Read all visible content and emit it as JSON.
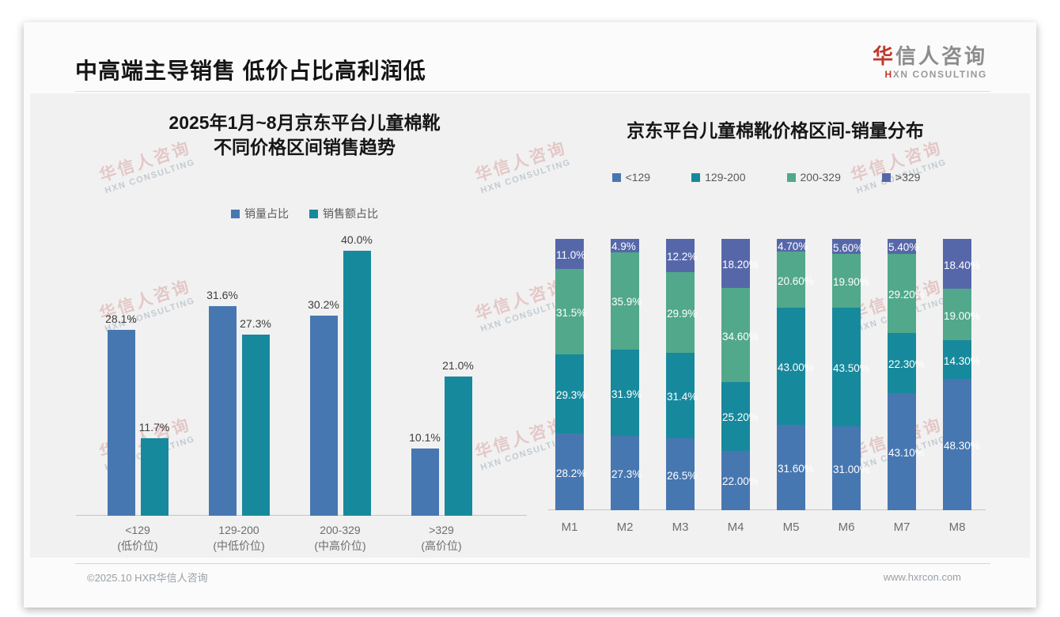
{
  "header": {
    "title": "中高端主导销售 低价占比高利润低",
    "logo_cn_accent": "华",
    "logo_cn_rest": "信人咨询",
    "logo_en_accent": "H",
    "logo_en_rest": "XN CONSULTING"
  },
  "watermark": {
    "line1": "华信人咨询",
    "line2": "HXN CONSULTING"
  },
  "footer": {
    "copyright": "©2025.10 HXR华信人咨询",
    "website": "www.hxrcon.com"
  },
  "colors": {
    "accent_red": "#c0392b",
    "bar_blue": "#4777b0",
    "bar_teal": "#17899c",
    "bar_green": "#52a88b",
    "bar_indigo": "#5667a9",
    "panel_gray": "#f1f1f1"
  },
  "chart_data": [
    {
      "type": "bar",
      "title_lines": [
        "2025年1月~8月京东平台儿童棉靴",
        "不同价格区间销售趋势"
      ],
      "legend_position": "top",
      "grid": false,
      "ylim": [
        0,
        45
      ],
      "categories": [
        {
          "range": "<129",
          "tier": "(低价位)"
        },
        {
          "range": "129-200",
          "tier": "(中低价位)"
        },
        {
          "range": "200-329",
          "tier": "(中高价位)"
        },
        {
          "range": ">329",
          "tier": "(高价位)"
        }
      ],
      "series": [
        {
          "name": "销量占比",
          "color": "#4777b0",
          "values": [
            28.1,
            31.6,
            30.2,
            10.1
          ],
          "labels": [
            "28.1%",
            "31.6%",
            "30.2%",
            "10.1%"
          ]
        },
        {
          "name": "销售额占比",
          "color": "#17899c",
          "values": [
            11.7,
            27.3,
            40.0,
            21.0
          ],
          "labels": [
            "11.7%",
            "27.3%",
            "40.0%",
            "21.0%"
          ]
        }
      ]
    },
    {
      "type": "stacked-bar",
      "title": "京东平台儿童棉靴价格区间-销量分布",
      "legend_position": "top",
      "grid": false,
      "ylim": [
        0,
        100
      ],
      "categories": [
        "M1",
        "M2",
        "M3",
        "M4",
        "M5",
        "M6",
        "M7",
        "M8"
      ],
      "series": [
        {
          "name": "<129",
          "color": "#4777b0",
          "values": [
            28.2,
            27.3,
            26.5,
            22.0,
            31.6,
            31.0,
            43.1,
            48.3
          ],
          "labels": [
            "28.2%",
            "27.3%",
            "26.5%",
            "22.00%",
            "31.60%",
            "31.00%",
            "43.10%",
            "48.30%"
          ]
        },
        {
          "name": "129-200",
          "color": "#17899c",
          "values": [
            29.3,
            31.9,
            31.4,
            25.2,
            43.0,
            43.5,
            22.3,
            14.3
          ],
          "labels": [
            "29.3%",
            "31.9%",
            "31.4%",
            "25.20%",
            "43.00%",
            "43.50%",
            "22.30%",
            "14.30%"
          ]
        },
        {
          "name": "200-329",
          "color": "#52a88b",
          "values": [
            31.5,
            35.9,
            29.9,
            34.6,
            20.6,
            19.9,
            29.2,
            19.0
          ],
          "labels": [
            "31.5%",
            "35.9%",
            "29.9%",
            "34.60%",
            "20.60%",
            "19.90%",
            "29.20%",
            "19.00%"
          ]
        },
        {
          "name": ">329",
          "color": "#5667a9",
          "values": [
            11.0,
            4.9,
            12.2,
            18.2,
            4.7,
            5.6,
            5.4,
            18.4
          ],
          "labels": [
            "11.0%",
            "4.9%",
            "12.2%",
            "18.20%",
            "4.70%",
            "5.60%",
            "5.40%",
            "18.40%"
          ]
        }
      ]
    }
  ]
}
